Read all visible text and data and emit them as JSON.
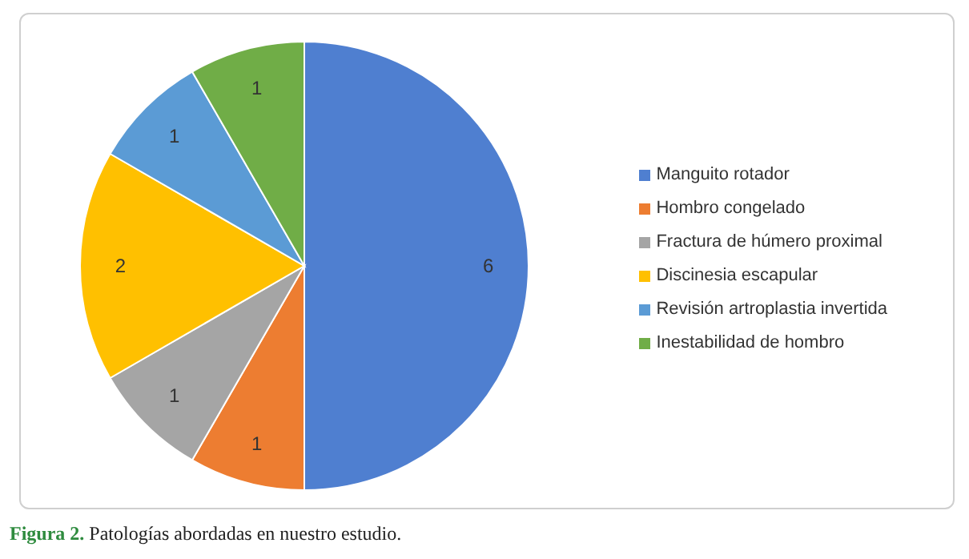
{
  "chart_data": {
    "type": "pie",
    "categories": [
      "Manguito rotador",
      "Hombro congelado",
      "Fractura de húmero proximal",
      "Discinesia escapular",
      "Revisión artroplastia invertida",
      "Inestabilidad de hombro"
    ],
    "values": [
      6,
      1,
      1,
      2,
      1,
      1
    ],
    "colors": [
      "#4f7fd0",
      "#ed7d31",
      "#a5a5a5",
      "#ffc000",
      "#5b9bd5",
      "#70ad47"
    ],
    "data_labels": true,
    "legend": "right",
    "annotations": [
      "Figura 2. Patologías abordadas en nuestro estudio."
    ]
  }
}
